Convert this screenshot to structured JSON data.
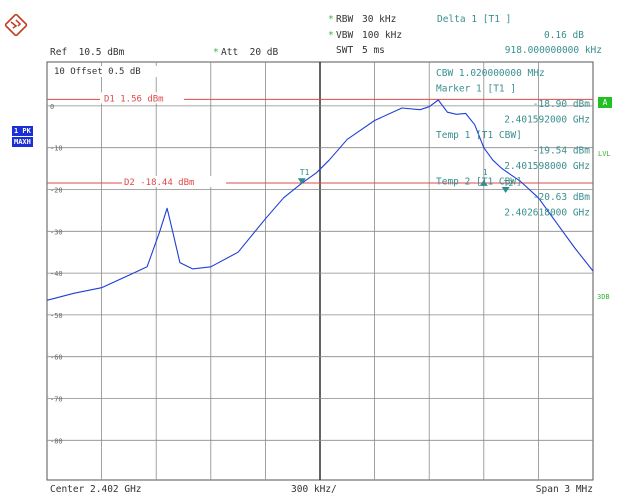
{
  "header": {
    "rbw_label": "RBW",
    "rbw_value": "30 kHz",
    "vbw_label": "VBW",
    "vbw_value": "100 kHz",
    "swt_label": "SWT",
    "swt_value": "5 ms",
    "delta_label": "Delta 1 [T1 ]",
    "delta_value_db": "0.16 dB",
    "delta_value_freq": "918.000000000 kHz",
    "ref": "Ref  10.5 dBm",
    "att": "Att  20 dB"
  },
  "plot_labels": {
    "offset": "10 Offset  0.5 dB",
    "d1": "D1 1.56 dBm",
    "d2": "D2 -18.44 dBm",
    "t1_marker": "T1",
    "marker1": "1",
    "t2_marker": "T2"
  },
  "marker_info": [
    "CBW  1.020000000 MHz",
    "Marker 1 [T1 ]",
    "-18.90 dBm",
    "2.401592000 GHz",
    "Temp 1 [T1 CBW]",
    "-19.54 dBm",
    "2.401598000 GHz",
    "Temp 2 [T1 CBW]",
    "-20.63 dBm",
    "2.402618000 GHz"
  ],
  "left_badges": {
    "pk": "1 PK",
    "maxh": "MAXH"
  },
  "right_side": {
    "a": "A",
    "lvl": "LVL",
    "3db": "3DB"
  },
  "footer": {
    "center": "Center 2.402 GHz",
    "per_div": "300 kHz/",
    "span": "Span 3 MHz"
  },
  "colors": {
    "trace": "#1f3fd8",
    "display_line": "#e04848",
    "grid": "#8a8a8a",
    "marker": "#2a8f8f",
    "teal_text": "#3a8f8f"
  },
  "chart_data": {
    "type": "line",
    "xlabel": "",
    "ylabel": "",
    "center_freq_ghz": 2.402,
    "span_mhz": 3,
    "xlim_ghz": [
      2.4005,
      2.4035
    ],
    "ylim_dbm": [
      -89.5,
      10.5
    ],
    "y_ticks": [
      0,
      -10,
      -20,
      -30,
      -40,
      -50,
      -60,
      -70,
      -80
    ],
    "display_lines_dbm": {
      "D1": 1.56,
      "D2": -18.44
    },
    "series": [
      {
        "x": [
          2.4005,
          2.40065,
          2.4008,
          2.40095,
          2.40105,
          2.40112,
          2.40116,
          2.40119,
          2.40123,
          2.4013,
          2.4014,
          2.40155,
          2.4017,
          2.4018,
          2.4019,
          2.40198,
          2.40205,
          2.40215,
          2.4023,
          2.40245,
          2.40255,
          2.4026,
          2.40265,
          2.4027,
          2.40275,
          2.4028,
          2.40285,
          2.4029,
          2.40295,
          2.403,
          2.40305,
          2.4031,
          2.4032,
          2.4033,
          2.4034,
          2.4035
        ],
        "y": [
          -46.5,
          -44.8,
          -43.5,
          -40.5,
          -38.5,
          -30,
          -24.5,
          -30,
          -37.5,
          -39,
          -38.5,
          -35,
          -27,
          -22,
          -18.5,
          -16,
          -13,
          -8,
          -3.5,
          -0.5,
          -0.9,
          -0.2,
          1.4,
          -1.5,
          -2,
          -1.8,
          -4.5,
          -10,
          -13,
          -15,
          -16.5,
          -18,
          -22,
          -28,
          -34,
          -39.5
        ]
      }
    ]
  }
}
